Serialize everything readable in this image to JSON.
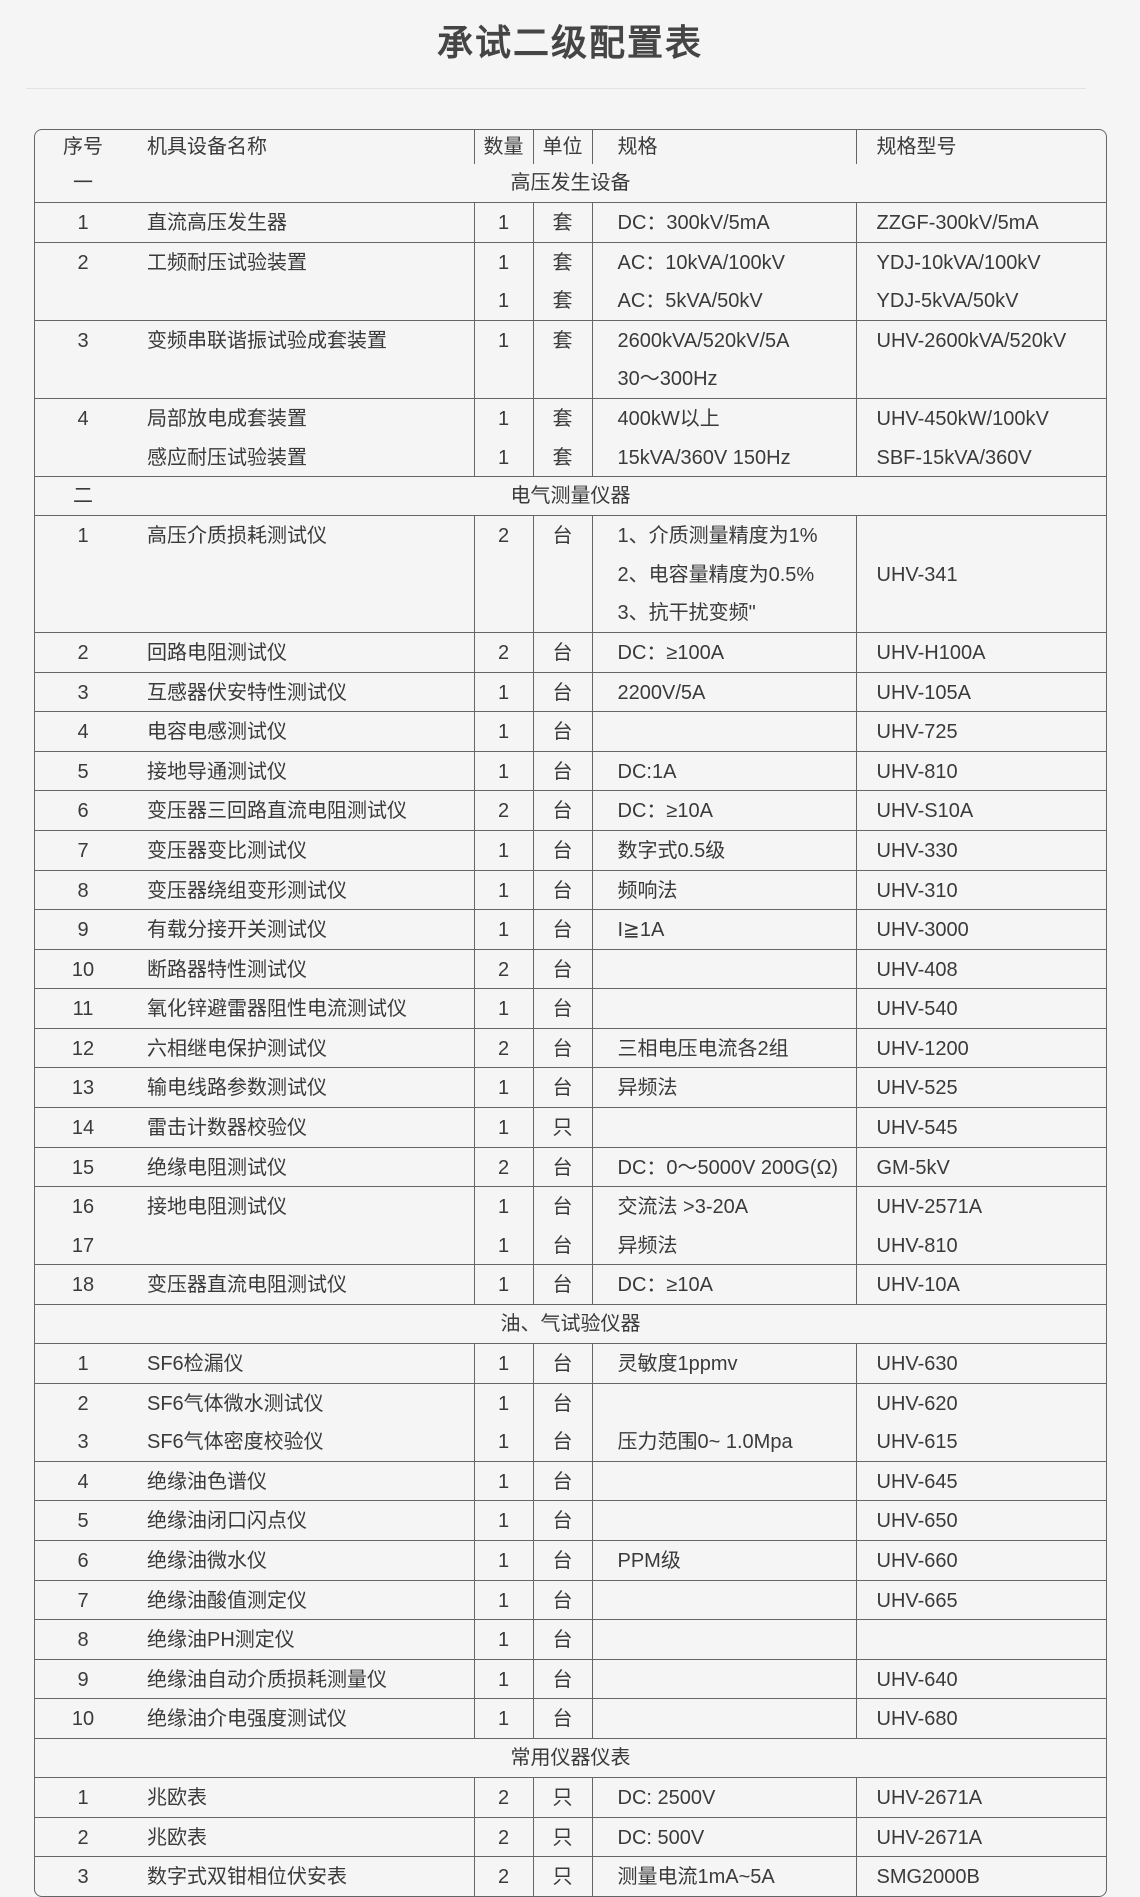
{
  "title": "承试二级配置表",
  "headers": {
    "no": "序号",
    "name": "机具设备名称",
    "qty": "数量",
    "unit": "单位",
    "spec": "规格",
    "model": "规格型号"
  },
  "rows": [
    {
      "type": "section",
      "no": "一",
      "label": "高压发生设备"
    },
    {
      "type": "item",
      "no": [
        "1"
      ],
      "name": [
        "直流高压发生器"
      ],
      "qty": [
        "1"
      ],
      "unit": [
        "套"
      ],
      "spec": [
        "DC：300kV/5mA"
      ],
      "model": [
        "ZZGF-300kV/5mA"
      ]
    },
    {
      "type": "item",
      "no": [
        "2",
        ""
      ],
      "name": [
        "工频耐压试验装置",
        ""
      ],
      "qty": [
        "1",
        "1"
      ],
      "unit": [
        "套",
        "套"
      ],
      "spec": [
        "AC：10kVA/100kV",
        "AC：5kVA/50kV"
      ],
      "model": [
        "YDJ-10kVA/100kV",
        "YDJ-5kVA/50kV"
      ]
    },
    {
      "type": "item",
      "no": [
        "3",
        ""
      ],
      "name": [
        "变频串联谐振试验成套装置",
        ""
      ],
      "qty": [
        "1",
        ""
      ],
      "unit": [
        "套",
        ""
      ],
      "spec": [
        "2600kVA/520kV/5A",
        " 30～300Hz"
      ],
      "model": [
        "UHV-2600kVA/520kV",
        ""
      ]
    },
    {
      "type": "item",
      "no": [
        "4",
        ""
      ],
      "name": [
        "局部放电成套装置",
        "感应耐压试验装置"
      ],
      "qty": [
        "1",
        "1"
      ],
      "unit": [
        "套",
        "套"
      ],
      "spec": [
        "400kW以上",
        "15kVA/360V  150Hz"
      ],
      "model": [
        "UHV-450kW/100kV",
        "SBF-15kVA/360V"
      ]
    },
    {
      "type": "section",
      "no": "二",
      "label": "电气测量仪器"
    },
    {
      "type": "item",
      "no": [
        "1",
        "",
        ""
      ],
      "name": [
        "高压介质损耗测试仪",
        "",
        ""
      ],
      "qty": [
        "2",
        "",
        ""
      ],
      "unit": [
        "台",
        "",
        ""
      ],
      "spec": [
        "1、介质测量精度为1%",
        "2、电容量精度为0.5%",
        "3、抗干扰变频\""
      ],
      "model": [
        "",
        "UHV-341",
        ""
      ]
    },
    {
      "type": "item",
      "no": [
        "2"
      ],
      "name": [
        "回路电阻测试仪"
      ],
      "qty": [
        "2"
      ],
      "unit": [
        "台"
      ],
      "spec": [
        "DC：≥100A"
      ],
      "model": [
        "UHV-H100A"
      ]
    },
    {
      "type": "item",
      "no": [
        "3"
      ],
      "name": [
        "互感器伏安特性测试仪"
      ],
      "qty": [
        "1"
      ],
      "unit": [
        "台"
      ],
      "spec": [
        "2200V/5A"
      ],
      "model": [
        "UHV-105A"
      ]
    },
    {
      "type": "item",
      "no": [
        "4"
      ],
      "name": [
        "电容电感测试仪"
      ],
      "qty": [
        "1"
      ],
      "unit": [
        "台"
      ],
      "spec": [
        ""
      ],
      "model": [
        "UHV-725"
      ]
    },
    {
      "type": "item",
      "no": [
        "5"
      ],
      "name": [
        "接地导通测试仪"
      ],
      "qty": [
        "1"
      ],
      "unit": [
        "台"
      ],
      "spec": [
        "DC:1A"
      ],
      "model": [
        "UHV-810"
      ]
    },
    {
      "type": "item",
      "no": [
        "6"
      ],
      "name": [
        "变压器三回路直流电阻测试仪"
      ],
      "qty": [
        "2"
      ],
      "unit": [
        "台"
      ],
      "spec": [
        "DC：≥10A"
      ],
      "model": [
        "UHV-S10A"
      ]
    },
    {
      "type": "item",
      "no": [
        "7"
      ],
      "name": [
        "变压器变比测试仪"
      ],
      "qty": [
        "1"
      ],
      "unit": [
        "台"
      ],
      "spec": [
        "数字式0.5级"
      ],
      "model": [
        "UHV-330"
      ]
    },
    {
      "type": "item",
      "no": [
        "8"
      ],
      "name": [
        "变压器绕组变形测试仪"
      ],
      "qty": [
        "1"
      ],
      "unit": [
        "台"
      ],
      "spec": [
        "频响法"
      ],
      "model": [
        "UHV-310"
      ]
    },
    {
      "type": "item",
      "no": [
        "9"
      ],
      "name": [
        "有载分接开关测试仪"
      ],
      "qty": [
        "1"
      ],
      "unit": [
        "台"
      ],
      "spec": [
        "I≧1A"
      ],
      "model": [
        "UHV-3000"
      ]
    },
    {
      "type": "item",
      "no": [
        "10"
      ],
      "name": [
        "断路器特性测试仪"
      ],
      "qty": [
        "2"
      ],
      "unit": [
        "台"
      ],
      "spec": [
        ""
      ],
      "model": [
        "UHV-408"
      ]
    },
    {
      "type": "item",
      "no": [
        "11"
      ],
      "name": [
        "氧化锌避雷器阻性电流测试仪"
      ],
      "qty": [
        "1"
      ],
      "unit": [
        "台"
      ],
      "spec": [
        ""
      ],
      "model": [
        "UHV-540"
      ]
    },
    {
      "type": "item",
      "no": [
        "12"
      ],
      "name": [
        "六相继电保护测试仪"
      ],
      "qty": [
        "2"
      ],
      "unit": [
        "台"
      ],
      "spec": [
        "三相电压电流各2组"
      ],
      "model": [
        "UHV-1200"
      ]
    },
    {
      "type": "item",
      "no": [
        "13"
      ],
      "name": [
        "输电线路参数测试仪"
      ],
      "qty": [
        "1"
      ],
      "unit": [
        "台"
      ],
      "spec": [
        "异频法"
      ],
      "model": [
        "UHV-525"
      ]
    },
    {
      "type": "item",
      "no": [
        "14"
      ],
      "name": [
        "雷击计数器校验仪"
      ],
      "qty": [
        "1"
      ],
      "unit": [
        "只"
      ],
      "spec": [
        ""
      ],
      "model": [
        "UHV-545"
      ]
    },
    {
      "type": "item",
      "no": [
        "15"
      ],
      "name": [
        "绝缘电阻测试仪"
      ],
      "qty": [
        "2"
      ],
      "unit": [
        "台"
      ],
      "spec": [
        "DC：0～5000V 200G(Ω)"
      ],
      "model": [
        "GM-5kV"
      ]
    },
    {
      "type": "item",
      "no": [
        "16",
        "17"
      ],
      "name": [
        "接地电阻测试仪",
        ""
      ],
      "qty": [
        "1",
        "1"
      ],
      "unit": [
        "台",
        "台"
      ],
      "spec": [
        "交流法  >3-20A",
        "异频法"
      ],
      "model": [
        "UHV-2571A",
        "UHV-810"
      ]
    },
    {
      "type": "item",
      "no": [
        "18"
      ],
      "name": [
        "变压器直流电阻测试仪"
      ],
      "qty": [
        "1"
      ],
      "unit": [
        "台"
      ],
      "spec": [
        "DC：≥10A"
      ],
      "model": [
        "UHV-10A"
      ]
    },
    {
      "type": "section",
      "no": "",
      "label": "油、气试验仪器"
    },
    {
      "type": "item",
      "no": [
        "1"
      ],
      "name": [
        "SF6检漏仪"
      ],
      "qty": [
        "1"
      ],
      "unit": [
        "台"
      ],
      "spec": [
        "灵敏度1ppmv"
      ],
      "model": [
        "UHV-630"
      ]
    },
    {
      "type": "item",
      "no": [
        "2",
        "3"
      ],
      "name": [
        "SF6气体微水测试仪",
        "SF6气体密度校验仪"
      ],
      "qty": [
        "1",
        "1"
      ],
      "unit": [
        "台",
        "台"
      ],
      "spec": [
        "",
        "压力范围0~ 1.0Mpa"
      ],
      "model": [
        "UHV-620",
        "UHV-615"
      ]
    },
    {
      "type": "item",
      "no": [
        "4"
      ],
      "name": [
        "绝缘油色谱仪"
      ],
      "qty": [
        "1"
      ],
      "unit": [
        "台"
      ],
      "spec": [
        ""
      ],
      "model": [
        "UHV-645"
      ]
    },
    {
      "type": "item",
      "no": [
        "5"
      ],
      "name": [
        "绝缘油闭口闪点仪"
      ],
      "qty": [
        "1"
      ],
      "unit": [
        "台"
      ],
      "spec": [
        ""
      ],
      "model": [
        "UHV-650"
      ]
    },
    {
      "type": "item",
      "no": [
        "6"
      ],
      "name": [
        "绝缘油微水仪"
      ],
      "qty": [
        "1"
      ],
      "unit": [
        "台"
      ],
      "spec": [
        "PPM级"
      ],
      "model": [
        "UHV-660"
      ]
    },
    {
      "type": "item",
      "no": [
        "7"
      ],
      "name": [
        "绝缘油酸值测定仪"
      ],
      "qty": [
        "1"
      ],
      "unit": [
        "台"
      ],
      "spec": [
        ""
      ],
      "model": [
        "UHV-665"
      ]
    },
    {
      "type": "item",
      "no": [
        "8"
      ],
      "name": [
        "绝缘油PH测定仪"
      ],
      "qty": [
        "1"
      ],
      "unit": [
        "台"
      ],
      "spec": [
        ""
      ],
      "model": [
        ""
      ]
    },
    {
      "type": "item",
      "no": [
        "9"
      ],
      "name": [
        "绝缘油自动介质损耗测量仪"
      ],
      "qty": [
        "1"
      ],
      "unit": [
        "台"
      ],
      "spec": [
        ""
      ],
      "model": [
        "UHV-640"
      ]
    },
    {
      "type": "item",
      "no": [
        "10"
      ],
      "name": [
        "绝缘油介电强度测试仪"
      ],
      "qty": [
        "1"
      ],
      "unit": [
        "台"
      ],
      "spec": [
        ""
      ],
      "model": [
        "UHV-680"
      ]
    },
    {
      "type": "section",
      "no": "",
      "label": "常用仪器仪表"
    },
    {
      "type": "item",
      "no": [
        "1"
      ],
      "name": [
        "兆欧表"
      ],
      "qty": [
        "2"
      ],
      "unit": [
        "只"
      ],
      "spec": [
        "DC: 2500V"
      ],
      "model": [
        "UHV-2671A"
      ]
    },
    {
      "type": "item",
      "no": [
        "2"
      ],
      "name": [
        "兆欧表"
      ],
      "qty": [
        "2"
      ],
      "unit": [
        "只"
      ],
      "spec": [
        "DC: 500V"
      ],
      "model": [
        "UHV-2671A"
      ]
    },
    {
      "type": "item",
      "no": [
        "3"
      ],
      "name": [
        "数字式双钳相位伏安表"
      ],
      "qty": [
        "2"
      ],
      "unit": [
        "只"
      ],
      "spec": [
        "测量电流1mA~5A"
      ],
      "model": [
        "SMG2000B"
      ]
    }
  ]
}
